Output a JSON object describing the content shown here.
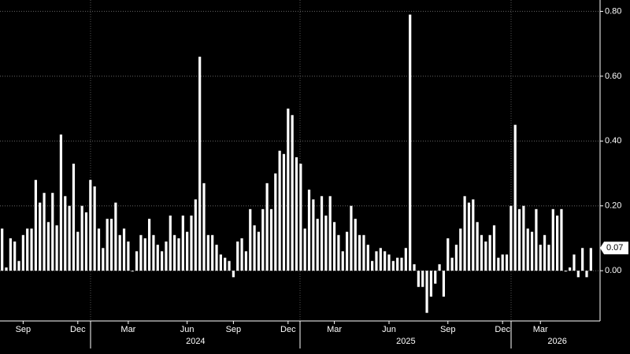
{
  "chart_data": {
    "type": "bar",
    "color": "#ffffff",
    "grid": true,
    "values": [
      0.13,
      0.01,
      0.1,
      0.09,
      0.03,
      0.11,
      0.13,
      0.13,
      0.28,
      0.21,
      0.24,
      0.15,
      0.24,
      0.14,
      0.42,
      0.23,
      0.2,
      0.33,
      0.12,
      0.2,
      0.18,
      0.28,
      0.26,
      0.13,
      0.07,
      0.16,
      0.16,
      0.21,
      0.11,
      0.13,
      0.09,
      0.0,
      0.06,
      0.11,
      0.1,
      0.16,
      0.11,
      0.08,
      0.06,
      0.09,
      0.17,
      0.11,
      0.1,
      0.17,
      0.12,
      0.17,
      0.22,
      0.66,
      0.27,
      0.11,
      0.11,
      0.08,
      0.05,
      0.04,
      0.03,
      -0.02,
      0.09,
      0.1,
      0.06,
      0.19,
      0.14,
      0.12,
      0.19,
      0.27,
      0.19,
      0.3,
      0.37,
      0.36,
      0.5,
      0.48,
      0.35,
      0.33,
      0.13,
      0.25,
      0.22,
      0.16,
      0.23,
      0.17,
      0.23,
      0.15,
      0.11,
      0.06,
      0.12,
      0.2,
      0.16,
      0.11,
      0.11,
      0.08,
      0.03,
      0.06,
      0.07,
      0.06,
      0.05,
      0.03,
      0.04,
      0.04,
      0.07,
      0.79,
      0.02,
      -0.05,
      -0.05,
      -0.13,
      -0.08,
      -0.04,
      0.02,
      -0.08,
      0.1,
      0.04,
      0.08,
      0.13,
      0.23,
      0.21,
      0.22,
      0.15,
      0.11,
      0.09,
      0.11,
      0.14,
      0.04,
      0.05,
      0.05,
      0.2,
      0.45,
      0.19,
      0.2,
      0.13,
      0.12,
      0.19,
      0.08,
      0.11,
      0.08,
      0.19,
      0.17,
      0.19,
      0.0,
      0.01,
      0.05,
      -0.02,
      0.07,
      -0.02,
      0.07
    ],
    "categories": [
      null,
      null,
      null,
      null,
      null,
      "Sep",
      null,
      null,
      null,
      null,
      null,
      null,
      null,
      null,
      null,
      null,
      null,
      null,
      "Dec",
      null,
      null,
      null,
      null,
      null,
      null,
      null,
      null,
      null,
      null,
      null,
      "Mar",
      null,
      null,
      null,
      null,
      null,
      null,
      null,
      null,
      null,
      null,
      null,
      null,
      null,
      "Jun",
      null,
      null,
      null,
      null,
      null,
      null,
      null,
      null,
      null,
      null,
      "Sep",
      null,
      null,
      null,
      null,
      null,
      null,
      null,
      null,
      null,
      null,
      null,
      null,
      "Dec",
      null,
      null,
      null,
      null,
      null,
      null,
      null,
      null,
      null,
      null,
      "Mar",
      null,
      null,
      null,
      null,
      null,
      null,
      null,
      null,
      null,
      null,
      null,
      null,
      "Jun",
      null,
      null,
      null,
      null,
      null,
      null,
      null,
      null,
      null,
      null,
      null,
      null,
      null,
      "Sep",
      null,
      null,
      null,
      null,
      null,
      null,
      null,
      null,
      null,
      null,
      null,
      null,
      "Dec",
      null,
      null,
      null,
      null,
      null,
      null,
      null,
      null,
      "Mar",
      null,
      null,
      null,
      null,
      null,
      null,
      null,
      null,
      null,
      null,
      null,
      null
    ],
    "year_categories": [
      null,
      null,
      null,
      null,
      null,
      null,
      null,
      null,
      null,
      null,
      null,
      null,
      null,
      null,
      null,
      null,
      null,
      null,
      null,
      null,
      null,
      null,
      null,
      null,
      null,
      null,
      null,
      null,
      null,
      null,
      null,
      null,
      null,
      null,
      null,
      null,
      null,
      null,
      null,
      null,
      null,
      null,
      null,
      null,
      null,
      null,
      "2024",
      null,
      null,
      null,
      null,
      null,
      null,
      null,
      null,
      null,
      null,
      null,
      null,
      null,
      null,
      null,
      null,
      null,
      null,
      null,
      null,
      null,
      null,
      null,
      null,
      null,
      null,
      null,
      null,
      null,
      null,
      null,
      null,
      null,
      null,
      null,
      null,
      null,
      null,
      null,
      null,
      null,
      null,
      null,
      null,
      null,
      null,
      null,
      null,
      null,
      "2025",
      null,
      null,
      null,
      null,
      null,
      null,
      null,
      null,
      null,
      null,
      null,
      null,
      null,
      null,
      null,
      null,
      null,
      null,
      null,
      null,
      null,
      null,
      null,
      null,
      null,
      null,
      null,
      null,
      null,
      null,
      null,
      null,
      null,
      null,
      null,
      "2026",
      null,
      null,
      null,
      null,
      null,
      null,
      null,
      null
    ],
    "ylim": [
      -0.155,
      0.835
    ],
    "yticks": [
      {
        "value": 0.8,
        "label": "0.80"
      },
      {
        "value": 0.6,
        "label": "0.60"
      },
      {
        "value": 0.4,
        "label": "0.40"
      },
      {
        "value": 0.2,
        "label": "0.20"
      },
      {
        "value": 0,
        "label": "0.00"
      }
    ]
  }
}
